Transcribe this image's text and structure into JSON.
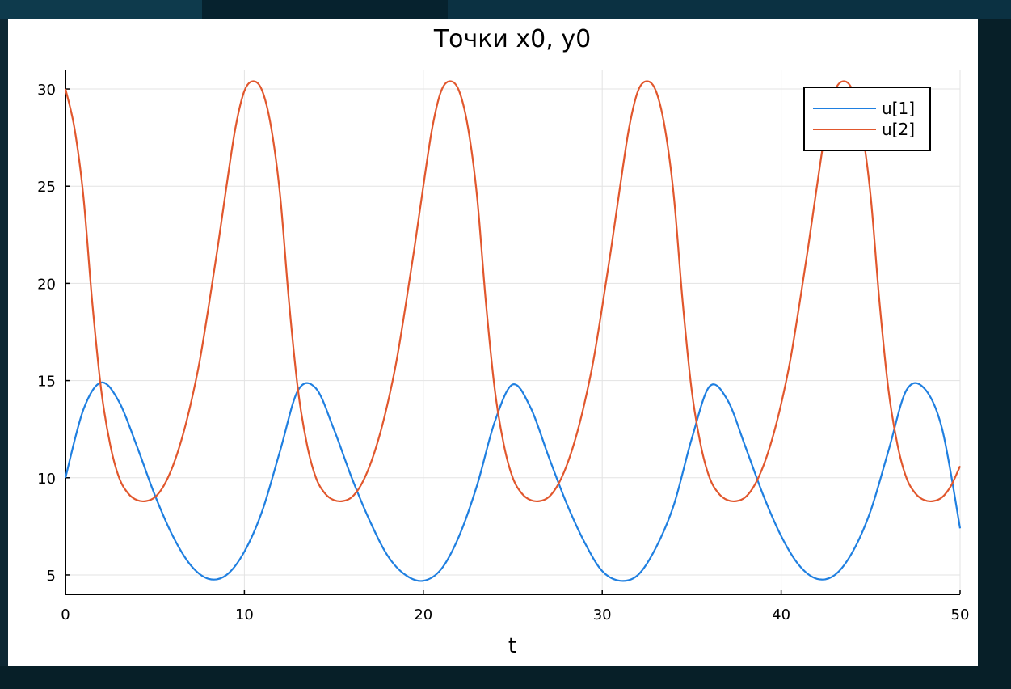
{
  "window": {
    "background_color": "#0d2733",
    "accent_color": "#0b3142"
  },
  "chart_data": {
    "type": "line",
    "title": "Точки x0, y0",
    "xlabel": "t",
    "ylabel": "",
    "xlim": [
      0,
      50
    ],
    "ylim": [
      4,
      31
    ],
    "xticks": [
      "0",
      "10",
      "20",
      "30",
      "40",
      "50"
    ],
    "yticks": [
      "5",
      "10",
      "15",
      "20",
      "25",
      "30"
    ],
    "grid": true,
    "legend_position": "top-right",
    "series": [
      {
        "name": "u[1]",
        "color": "#1f7fe0",
        "x": [
          0,
          1,
          2,
          3,
          4,
          5,
          6,
          7,
          8,
          9,
          10,
          11,
          12,
          13,
          14,
          15,
          16,
          17,
          18,
          19,
          20,
          21,
          22,
          23,
          24,
          25,
          26,
          27,
          28,
          29,
          30,
          31,
          32,
          33,
          34,
          35,
          36,
          37,
          38,
          39,
          40,
          41,
          42,
          43,
          44,
          45,
          46,
          47,
          48,
          49,
          50
        ],
        "values": [
          10.0,
          13.5,
          14.9,
          13.9,
          11.6,
          9.1,
          7.0,
          5.5,
          4.8,
          5.0,
          6.2,
          8.3,
          11.4,
          14.5,
          14.6,
          12.5,
          10.0,
          7.8,
          6.0,
          5.0,
          4.7,
          5.3,
          7.0,
          9.6,
          12.9,
          14.8,
          13.6,
          11.1,
          8.7,
          6.7,
          5.2,
          4.7,
          5.0,
          6.4,
          8.6,
          12.0,
          14.7,
          14.0,
          11.6,
          9.1,
          7.0,
          5.5,
          4.8,
          5.0,
          6.2,
          8.3,
          11.4,
          14.5,
          14.6,
          12.5,
          7.4
        ]
      },
      {
        "name": "u[2]",
        "color": "#e1572d",
        "x": [
          0,
          0.5,
          1,
          1.5,
          2,
          2.5,
          3,
          3.5,
          4,
          4.5,
          5,
          5.5,
          6,
          6.5,
          7,
          7.5,
          8,
          8.5,
          9,
          9.5,
          10,
          10.5,
          11,
          11.5,
          12,
          12.5,
          13,
          13.5,
          14,
          14.5,
          15,
          15.5,
          16,
          16.5,
          17,
          17.5,
          18,
          18.5,
          19,
          19.5,
          20,
          20.5,
          21,
          21.5,
          22,
          22.5,
          23,
          23.5,
          24,
          24.5,
          25,
          25.5,
          26,
          26.5,
          27,
          27.5,
          28,
          28.5,
          29,
          29.5,
          30,
          30.5,
          31,
          31.5,
          32,
          32.5,
          33,
          33.5,
          34,
          34.5,
          35,
          35.5,
          36,
          36.5,
          37,
          37.5,
          38,
          38.5,
          39,
          39.5,
          40,
          40.5,
          41,
          41.5,
          42,
          42.5,
          43,
          43.5,
          44,
          44.5,
          45,
          45.5,
          46,
          46.5,
          47,
          47.5,
          48,
          48.5,
          49,
          49.5,
          50
        ],
        "values": [
          30.0,
          28.0,
          24.5,
          19.0,
          14.5,
          11.7,
          10.0,
          9.2,
          8.85,
          8.8,
          9.0,
          9.6,
          10.6,
          12.0,
          13.8,
          16.0,
          18.8,
          21.8,
          25.0,
          28.0,
          29.9,
          30.4,
          29.9,
          28.0,
          24.5,
          19.0,
          14.5,
          11.7,
          10.0,
          9.2,
          8.85,
          8.8,
          9.0,
          9.6,
          10.6,
          12.0,
          13.8,
          16.0,
          18.8,
          21.8,
          25.0,
          28.0,
          29.9,
          30.4,
          29.9,
          28.0,
          24.5,
          19.0,
          14.5,
          11.7,
          10.0,
          9.2,
          8.85,
          8.8,
          9.0,
          9.6,
          10.6,
          12.0,
          13.8,
          16.0,
          18.8,
          21.8,
          25.0,
          28.0,
          29.9,
          30.4,
          29.9,
          28.0,
          24.5,
          19.0,
          14.5,
          11.7,
          10.0,
          9.2,
          8.85,
          8.8,
          9.0,
          9.6,
          10.6,
          12.0,
          13.8,
          16.0,
          18.8,
          21.8,
          25.0,
          28.0,
          29.9,
          30.4,
          29.9,
          28.0,
          24.5,
          19.0,
          14.5,
          11.7,
          10.0,
          9.2,
          8.85,
          8.8,
          9.0,
          9.6,
          10.6
        ]
      }
    ]
  }
}
